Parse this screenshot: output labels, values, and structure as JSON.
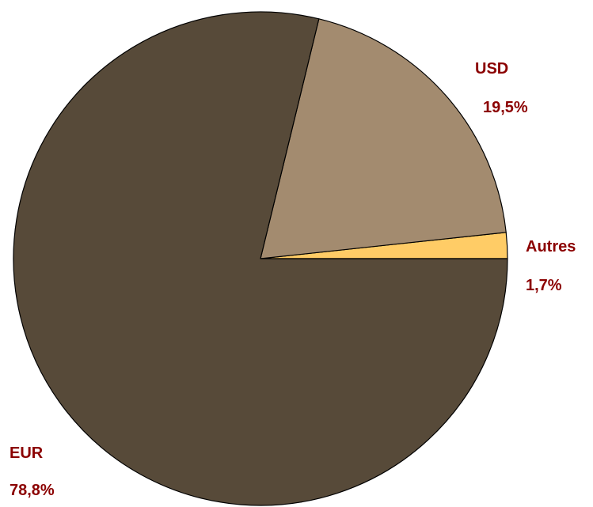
{
  "chart_data": {
    "type": "pie",
    "title": "",
    "slices": [
      {
        "name": "Autres",
        "value": 1.7,
        "value_label": "1,7%",
        "color": "#FFCC66"
      },
      {
        "name": "USD",
        "value": 19.5,
        "value_label": "19,5%",
        "color": "#A38B6F"
      },
      {
        "name": "EUR",
        "value": 78.8,
        "value_label": "78,8%",
        "color": "#574A39"
      }
    ],
    "start_angle_deg": 0,
    "direction": "counterclockwise",
    "label_color": "#8B0000",
    "outline_color": "#000000",
    "legend": "none"
  }
}
